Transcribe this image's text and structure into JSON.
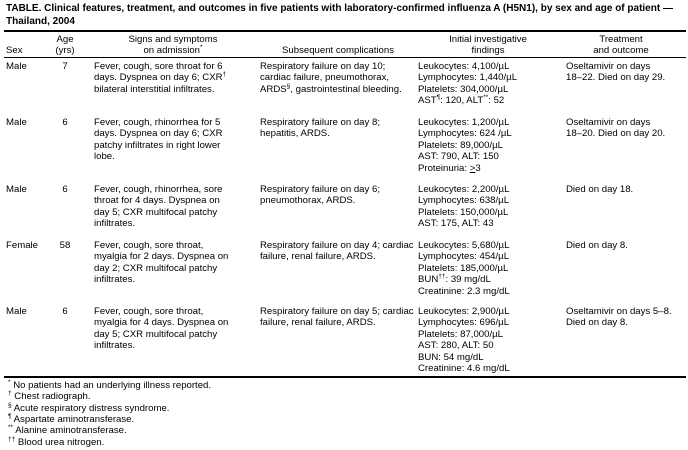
{
  "title": "TABLE. Clinical features, treatment, and outcomes in five patients with laboratory-confirmed influenza A (H5N1), by sex and age of patient — Thailand, 2004",
  "columns": [
    [
      [
        "Sex"
      ]
    ],
    [
      [
        "Age"
      ],
      [
        "(yrs)"
      ]
    ],
    [
      [
        "Signs and symptoms"
      ],
      [
        "on admission",
        "*"
      ]
    ],
    [
      [
        "Subsequent complications"
      ]
    ],
    [
      [
        "Initial investigative"
      ],
      [
        "findings"
      ]
    ],
    [
      [
        "Treatment"
      ],
      [
        "and outcome"
      ]
    ]
  ],
  "rows": [
    {
      "sex": [
        [
          "Male"
        ]
      ],
      "age": [
        [
          "7"
        ]
      ],
      "signs": [
        [
          "Fever, cough, sore throat for 6"
        ],
        [
          "days. Dyspnea on day 6; CXR",
          "†"
        ],
        [
          "bilateral interstitial infiltrates."
        ]
      ],
      "complications": [
        [
          "Respiratory failure on day 10;"
        ],
        [
          "cardiac failure, pneumothorax,"
        ],
        [
          "ARDS",
          "§",
          ", gastrointestinal bleeding."
        ]
      ],
      "findings": [
        [
          "Leukocytes: 4,100/µL"
        ],
        [
          "Lymphocytes: 1,440/µL"
        ],
        [
          "Platelets: 304,000/µL"
        ],
        [
          "AST",
          "¶",
          ": 120, ALT",
          "**",
          ": 52"
        ]
      ],
      "outcome": [
        [
          "Oseltamivir on days"
        ],
        [
          "18–22. Died on day 29."
        ]
      ]
    },
    {
      "sex": [
        [
          "Male"
        ]
      ],
      "age": [
        [
          "6"
        ]
      ],
      "signs": [
        [
          "Fever, cough, rhinorrhea for 5"
        ],
        [
          "days. Dyspnea on day 6; CXR"
        ],
        [
          "patchy infiltrates in right lower"
        ],
        [
          "lobe."
        ]
      ],
      "complications": [
        [
          "Respiratory failure on day 8;"
        ],
        [
          "hepatitis, ARDS."
        ]
      ],
      "findings": [
        [
          "Leukocytes: 1,200/µL"
        ],
        [
          "Lymphocytes: 624 /µL"
        ],
        [
          "Platelets: 89,000/µL"
        ],
        [
          "AST: 790, ALT: 150"
        ],
        [
          "Proteinuria: ",
          ">",
          "3"
        ]
      ],
      "outcome": [
        [
          "Oseltamivir on days"
        ],
        [
          "18–20. Died on day 20."
        ]
      ]
    },
    {
      "sex": [
        [
          "Male"
        ]
      ],
      "age": [
        [
          "6"
        ]
      ],
      "signs": [
        [
          "Fever, cough, rhinorrhea, sore"
        ],
        [
          "throat for 4 days. Dyspnea on"
        ],
        [
          "day 5; CXR multifocal patchy"
        ],
        [
          "infiltrates."
        ]
      ],
      "complications": [
        [
          "Respiratory failure on day 6;"
        ],
        [
          "pneumothorax, ARDS."
        ]
      ],
      "findings": [
        [
          "Leukocytes: 2,200/µL"
        ],
        [
          "Lymphocytes: 638/µL"
        ],
        [
          "Platelets: 150,000/µL"
        ],
        [
          "AST: 175, ALT: 43"
        ]
      ],
      "outcome": [
        [
          "Died on day 18."
        ]
      ]
    },
    {
      "sex": [
        [
          "Female"
        ]
      ],
      "age": [
        [
          "58"
        ]
      ],
      "signs": [
        [
          "Fever, cough, sore throat,"
        ],
        [
          "myalgia for 2 days. Dyspnea on"
        ],
        [
          "day 2; CXR multifocal patchy"
        ],
        [
          "infiltrates."
        ]
      ],
      "complications": [
        [
          "Respiratory failure on day 4; cardiac"
        ],
        [
          "failure, renal failure, ARDS."
        ]
      ],
      "findings": [
        [
          "Leukocytes: 5,680/µL"
        ],
        [
          "Lymphocytes: 454/µL"
        ],
        [
          "Platelets: 185,000/µL"
        ],
        [
          "BUN",
          "††",
          ": 39 mg/dL"
        ],
        [
          "Creatinine: 2.3 mg/dL"
        ]
      ],
      "outcome": [
        [
          "Died on day 8."
        ]
      ]
    },
    {
      "sex": [
        [
          "Male"
        ]
      ],
      "age": [
        [
          "6"
        ]
      ],
      "signs": [
        [
          "Fever, cough, sore throat,"
        ],
        [
          "myalgia for 4 days. Dyspnea on"
        ],
        [
          "day 5; CXR multifocal patchy"
        ],
        [
          "infiltrates."
        ]
      ],
      "complications": [
        [
          "Respiratory failure on day 5; cardiac"
        ],
        [
          "failure, renal failure, ARDS."
        ]
      ],
      "findings": [
        [
          "Leukocytes: 2,900/µL"
        ],
        [
          "Lymphocytes: 696/µL"
        ],
        [
          "Platelets: 87,000/µL"
        ],
        [
          "AST: 280, ALT: 50"
        ],
        [
          "BUN: 54 mg/dL"
        ],
        [
          "Creatinine: 4.6 mg/dL"
        ]
      ],
      "outcome": [
        [
          "Oseltamivir on days 5–8."
        ],
        [
          "Died on day 8."
        ]
      ]
    }
  ],
  "footnotes": [
    {
      "mark": "*",
      "text": " No patients had an underlying illness reported."
    },
    {
      "mark": "†",
      "text": " Chest radiograph."
    },
    {
      "mark": "§",
      "text": " Acute respiratory distress syndrome."
    },
    {
      "mark": "¶",
      "text": " Aspartate aminotransferase."
    },
    {
      "mark": "**",
      "text": " Alanine aminotransferase."
    },
    {
      "mark": "††",
      "text": " Blood urea nitrogen."
    }
  ]
}
